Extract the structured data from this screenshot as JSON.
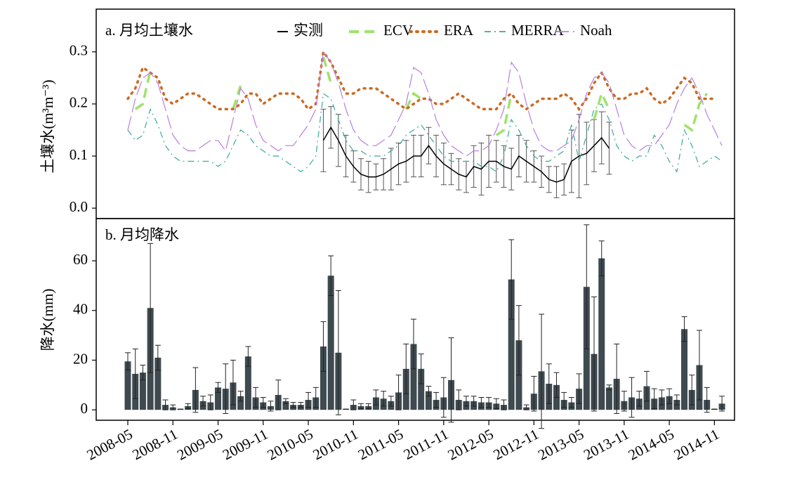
{
  "chart_data": [
    {
      "type": "line",
      "title": "a. 月均土壤水",
      "ylabel": "土壤水(m³m⁻³)",
      "x": [
        "2008-05",
        "2008-06",
        "2008-07",
        "2008-08",
        "2008-09",
        "2008-10",
        "2008-11",
        "2008-12",
        "2009-01",
        "2009-02",
        "2009-03",
        "2009-04",
        "2009-05",
        "2009-06",
        "2009-07",
        "2009-08",
        "2009-09",
        "2009-10",
        "2009-11",
        "2009-12",
        "2010-01",
        "2010-02",
        "2010-03",
        "2010-04",
        "2010-05",
        "2010-06",
        "2010-07",
        "2010-08",
        "2010-09",
        "2010-10",
        "2010-11",
        "2010-12",
        "2011-01",
        "2011-02",
        "2011-03",
        "2011-04",
        "2011-05",
        "2011-06",
        "2011-07",
        "2011-08",
        "2011-09",
        "2011-10",
        "2011-11",
        "2011-12",
        "2012-01",
        "2012-02",
        "2012-03",
        "2012-04",
        "2012-05",
        "2012-06",
        "2012-07",
        "2012-08",
        "2012-09",
        "2012-10",
        "2012-11",
        "2012-12",
        "2013-01",
        "2013-02",
        "2013-03",
        "2013-04",
        "2013-05",
        "2013-06",
        "2013-07",
        "2013-08",
        "2013-09",
        "2013-10",
        "2013-11",
        "2013-12",
        "2014-01",
        "2014-02",
        "2014-03",
        "2014-04",
        "2014-05",
        "2014-06",
        "2014-07",
        "2014-08",
        "2014-09",
        "2014-10",
        "2014-11",
        "2014-12"
      ],
      "ylim": [
        -0.02,
        0.382
      ],
      "yticks": [
        {
          "value": 0,
          "label": "0.0"
        },
        0.1,
        0.2,
        0.3
      ],
      "series": [
        {
          "name": "实测",
          "color": "#000000",
          "style": "solid",
          "values": [
            null,
            null,
            null,
            null,
            null,
            null,
            null,
            null,
            null,
            null,
            null,
            null,
            null,
            null,
            null,
            null,
            null,
            null,
            null,
            null,
            null,
            null,
            null,
            null,
            null,
            null,
            0.13,
            0.155,
            0.13,
            0.1,
            0.08,
            0.065,
            0.06,
            0.06,
            0.065,
            0.075,
            0.085,
            0.09,
            0.1,
            0.1,
            0.12,
            0.1,
            0.085,
            0.075,
            0.065,
            0.06,
            0.08,
            0.075,
            0.09,
            0.09,
            0.08,
            0.075,
            0.1,
            0.09,
            0.08,
            0.07,
            0.055,
            0.05,
            0.055,
            0.09,
            0.1,
            0.105,
            0.12,
            0.135,
            0.115,
            null,
            null,
            null,
            null,
            null,
            null,
            null,
            null,
            null,
            null,
            null,
            null,
            null,
            null,
            null
          ],
          "errors": [
            null,
            null,
            null,
            null,
            null,
            null,
            null,
            null,
            null,
            null,
            null,
            null,
            null,
            null,
            null,
            null,
            null,
            null,
            null,
            null,
            null,
            null,
            null,
            null,
            null,
            null,
            0.06,
            0.04,
            0.05,
            0.04,
            0.03,
            0.03,
            0.03,
            0.025,
            0.03,
            0.04,
            0.04,
            0.04,
            0.04,
            0.04,
            0.035,
            0.04,
            0.04,
            0.03,
            0.03,
            0.03,
            0.04,
            0.05,
            0.05,
            0.04,
            0.04,
            0.04,
            0.04,
            0.04,
            0.03,
            0.03,
            0.025,
            0.03,
            0.03,
            0.06,
            0.08,
            0.06,
            0.05,
            0.05,
            0.05,
            null,
            null,
            null,
            null,
            null,
            null,
            null,
            null,
            null,
            null,
            null,
            null,
            null,
            null,
            null
          ]
        },
        {
          "name": "ECV",
          "color": "#9ee36a",
          "style": "dashed",
          "values": [
            null,
            0.19,
            0.2,
            0.265,
            null,
            null,
            null,
            null,
            null,
            null,
            null,
            null,
            null,
            null,
            0.19,
            0.235,
            null,
            null,
            null,
            null,
            null,
            null,
            null,
            null,
            null,
            null,
            0.29,
            0.24,
            null,
            null,
            null,
            null,
            null,
            null,
            null,
            null,
            null,
            0.19,
            0.22,
            0.21,
            null,
            null,
            null,
            null,
            null,
            null,
            null,
            null,
            null,
            0.14,
            0.15,
            0.22,
            null,
            null,
            null,
            null,
            null,
            null,
            null,
            null,
            null,
            null,
            0.17,
            0.22,
            0.19,
            null,
            null,
            null,
            null,
            null,
            null,
            null,
            null,
            null,
            0.16,
            0.15,
            0.2,
            0.22,
            null,
            null
          ]
        },
        {
          "name": "ERA",
          "color": "#cc6a24",
          "style": "dotted",
          "values": [
            0.21,
            0.23,
            0.27,
            0.26,
            0.25,
            0.21,
            0.2,
            0.21,
            0.22,
            0.22,
            0.21,
            0.2,
            0.19,
            0.19,
            0.19,
            0.2,
            0.22,
            0.22,
            0.2,
            0.21,
            0.22,
            0.22,
            0.22,
            0.21,
            0.19,
            0.2,
            0.3,
            0.28,
            0.25,
            0.22,
            0.22,
            0.23,
            0.23,
            0.23,
            0.22,
            0.21,
            0.2,
            0.19,
            0.2,
            0.21,
            0.21,
            0.2,
            0.2,
            0.21,
            0.22,
            0.21,
            0.2,
            0.19,
            0.19,
            0.19,
            0.21,
            0.22,
            0.2,
            0.19,
            0.2,
            0.21,
            0.21,
            0.21,
            0.22,
            0.21,
            0.19,
            0.21,
            0.24,
            0.26,
            0.23,
            0.21,
            0.21,
            0.22,
            0.22,
            0.23,
            0.21,
            0.2,
            0.21,
            0.23,
            0.25,
            0.24,
            0.21,
            0.21,
            0.21,
            null
          ]
        },
        {
          "name": "MERRA",
          "color": "#3aa89a",
          "style": "dashdot",
          "values": [
            0.15,
            0.13,
            0.14,
            0.19,
            0.16,
            0.12,
            0.1,
            0.09,
            0.09,
            0.09,
            0.09,
            0.09,
            0.08,
            0.09,
            0.12,
            0.15,
            0.14,
            0.12,
            0.11,
            0.1,
            0.1,
            0.09,
            0.08,
            0.07,
            0.08,
            0.1,
            0.22,
            0.21,
            0.17,
            0.13,
            0.11,
            0.11,
            0.1,
            0.1,
            0.1,
            0.11,
            0.12,
            0.14,
            0.15,
            0.16,
            0.14,
            0.12,
            0.1,
            0.09,
            0.09,
            0.09,
            0.09,
            0.08,
            0.08,
            0.07,
            0.1,
            0.17,
            0.15,
            0.12,
            0.1,
            0.09,
            0.09,
            0.1,
            0.11,
            0.16,
            0.09,
            0.14,
            0.19,
            0.2,
            0.17,
            0.12,
            0.1,
            0.09,
            0.1,
            0.1,
            0.14,
            0.12,
            0.09,
            0.07,
            0.15,
            0.12,
            0.08,
            0.09,
            0.1,
            0.09
          ]
        },
        {
          "name": "Noah",
          "color": "#b67fe0",
          "style": "longdash",
          "values": [
            0.15,
            0.21,
            0.25,
            0.26,
            0.24,
            0.19,
            0.14,
            0.12,
            0.11,
            0.11,
            0.12,
            0.13,
            0.13,
            0.11,
            0.17,
            0.23,
            0.21,
            0.16,
            0.13,
            0.12,
            0.11,
            0.12,
            0.12,
            0.14,
            0.16,
            0.19,
            0.3,
            0.28,
            0.24,
            0.19,
            0.15,
            0.13,
            0.12,
            0.12,
            0.13,
            0.14,
            0.17,
            0.2,
            0.27,
            0.26,
            0.22,
            0.17,
            0.14,
            0.12,
            0.11,
            0.1,
            0.11,
            0.11,
            0.12,
            0.15,
            0.19,
            0.28,
            0.26,
            0.2,
            0.15,
            0.12,
            0.11,
            0.11,
            0.12,
            0.13,
            0.17,
            0.22,
            0.25,
            0.26,
            0.24,
            0.19,
            0.14,
            0.12,
            0.11,
            0.12,
            0.12,
            0.14,
            0.16,
            0.2,
            0.23,
            0.25,
            0.22,
            0.18,
            0.15,
            0.12
          ]
        }
      ]
    },
    {
      "type": "bar",
      "title": "b. 月均降水",
      "ylabel": "降水(mm)",
      "color": "#3f4a50",
      "x": [
        "2008-05",
        "2008-06",
        "2008-07",
        "2008-08",
        "2008-09",
        "2008-10",
        "2008-11",
        "2008-12",
        "2009-01",
        "2009-02",
        "2009-03",
        "2009-04",
        "2009-05",
        "2009-06",
        "2009-07",
        "2009-08",
        "2009-09",
        "2009-10",
        "2009-11",
        "2009-12",
        "2010-01",
        "2010-02",
        "2010-03",
        "2010-04",
        "2010-05",
        "2010-06",
        "2010-07",
        "2010-08",
        "2010-09",
        "2010-10",
        "2010-11",
        "2010-12",
        "2011-01",
        "2011-02",
        "2011-03",
        "2011-04",
        "2011-05",
        "2011-06",
        "2011-07",
        "2011-08",
        "2011-09",
        "2011-10",
        "2011-11",
        "2011-12",
        "2012-01",
        "2012-02",
        "2012-03",
        "2012-04",
        "2012-05",
        "2012-06",
        "2012-07",
        "2012-08",
        "2012-09",
        "2012-10",
        "2012-11",
        "2012-12",
        "2013-01",
        "2013-02",
        "2013-03",
        "2013-04",
        "2013-05",
        "2013-06",
        "2013-07",
        "2013-08",
        "2013-09",
        "2013-10",
        "2013-11",
        "2013-12",
        "2014-01",
        "2014-02",
        "2014-03",
        "2014-04",
        "2014-05",
        "2014-06",
        "2014-07",
        "2014-08",
        "2014-09",
        "2014-10",
        "2014-11",
        "2014-12"
      ],
      "xticks": [
        "2008-05",
        "2008-11",
        "2009-05",
        "2009-11",
        "2010-05",
        "2010-11",
        "2011-05",
        "2011-11",
        "2012-05",
        "2012-11",
        "2013-05",
        "2013-11",
        "2014-05",
        "2014-11"
      ],
      "ylim": [
        -4.2,
        77
      ],
      "yticks": [
        0,
        20,
        40,
        60
      ],
      "values": [
        19.5,
        14.5,
        15,
        41,
        21,
        2,
        1,
        0.3,
        1.5,
        8,
        3.5,
        3,
        9,
        8.5,
        11,
        5.5,
        21.5,
        5,
        3,
        1.5,
        6,
        3.5,
        2,
        2,
        4,
        5,
        25.5,
        54,
        23,
        0.3,
        2,
        1.5,
        1.5,
        5,
        4.5,
        3.5,
        7,
        16.5,
        26.5,
        16.5,
        7.5,
        4,
        5,
        12,
        4,
        3.5,
        3.5,
        3,
        3,
        2.5,
        2,
        52.5,
        28,
        1,
        6.5,
        15.5,
        10.5,
        10,
        4,
        3,
        8.5,
        49.5,
        22.5,
        61,
        9,
        12.5,
        3.5,
        5,
        4.5,
        9.5,
        4.5,
        5,
        5.5,
        4,
        32.5,
        8,
        18,
        4,
        0.3,
        2.5
      ],
      "errors": [
        3.5,
        10,
        3,
        26,
        5,
        2,
        1,
        0,
        1,
        9,
        2,
        3,
        2,
        10,
        9,
        2,
        4,
        4,
        2,
        2,
        6,
        1,
        1,
        1,
        3,
        4,
        10,
        8,
        25,
        0,
        2,
        1,
        1,
        3,
        3,
        2,
        7,
        10,
        10,
        6,
        2,
        3,
        8,
        17,
        4,
        2,
        2,
        2,
        2,
        2,
        2,
        16,
        14,
        1,
        7,
        23,
        8,
        5,
        3,
        2,
        6,
        25,
        23,
        7,
        1,
        14,
        4,
        8,
        3,
        6,
        4,
        3,
        3,
        2,
        5,
        6,
        14,
        5,
        0,
        3
      ]
    }
  ]
}
